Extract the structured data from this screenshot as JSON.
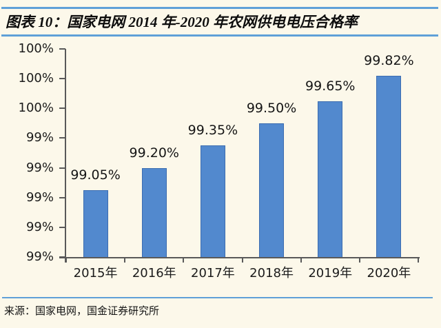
{
  "header": {
    "figure_label": "图表 10",
    "title": "图表 10：国家电网 2014 年-2020 年农网供电电压合格率"
  },
  "footer": {
    "source": "来源：国家电网，国金证券研究所"
  },
  "colors": {
    "background": "#FCF8EA",
    "bar_fill": "#5289CE",
    "bar_border": "#3B6CB0",
    "rule_blue": "#5FA0D8",
    "axis": "#595959",
    "text": "#1B1B1B"
  },
  "chart_data": {
    "type": "bar",
    "title": "国家电网 2014 年-2020 年农网供电电压合格率",
    "categories": [
      "2015年",
      "2016年",
      "2017年",
      "2018年",
      "2019年",
      "2020年"
    ],
    "values": [
      99.05,
      99.2,
      99.35,
      99.5,
      99.65,
      99.82
    ],
    "data_labels": [
      "99.05%",
      "99.20%",
      "99.35%",
      "99.50%",
      "99.65%",
      "99.82%"
    ],
    "xlabel": "",
    "ylabel": "",
    "ylim": [
      98.6,
      100.0
    ],
    "y_tick_step": 0.2,
    "y_tick_labels_top_to_bottom": [
      "100%",
      "100%",
      "100%",
      "99%",
      "99%",
      "99%",
      "99%",
      "99%"
    ],
    "grid": false,
    "legend": false,
    "legend_position": "none"
  }
}
